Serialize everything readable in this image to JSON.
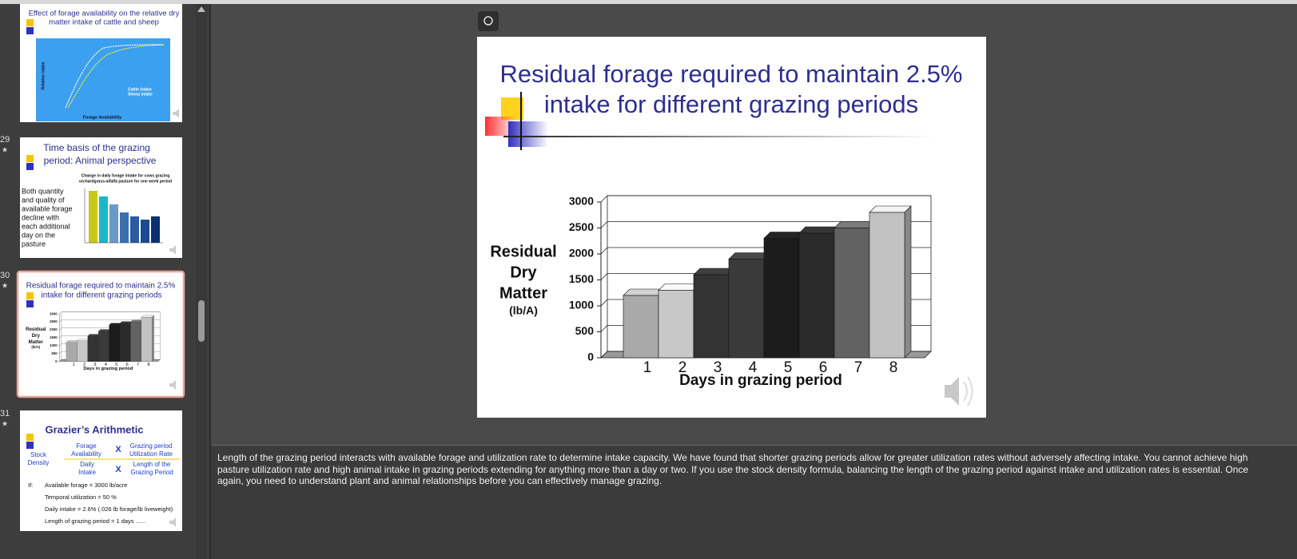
{
  "thumbnails": [
    {
      "title_lines": [
        "Effect of forage availability on the relative dry",
        "matter intake of cattle and sheep"
      ],
      "y_label": "Relative intake",
      "x_label": "Forage Availability",
      "legend": [
        "Cattle intake",
        "Sheep intake"
      ]
    },
    {
      "number": "29",
      "title_lines": [
        "Time basis of the grazing",
        "period: Animal perspective"
      ],
      "chart_title_lines": [
        "Change in daily forage intake for cows grazing",
        "orchardgrass-alfalfa pasture for one week period"
      ],
      "body_lines": [
        "Both quantity",
        "and quality of",
        "available forage",
        "decline with",
        "each additional",
        "day on the",
        "pasture"
      ]
    },
    {
      "number": "30"
    },
    {
      "number": "31",
      "title": "Grazier’s Arithmetic",
      "stock_density_lines": [
        "Stock",
        "Density"
      ],
      "forage_lines": [
        "Forage",
        "Availability"
      ],
      "times": "X",
      "utilization_lines": [
        "Grazing period",
        "Utilization Rate"
      ],
      "intake_lines": [
        "Daily",
        "Intake"
      ],
      "length_lines": [
        "Length of the",
        "Grazing Period"
      ],
      "if": "If:",
      "givens": [
        "Available forage = 3000 lb/acre",
        "Temporal utilization = 50 %",
        "Daily intake = 2.6% (.026 lb forage/lb liveweight)",
        "Length of grazing period = 1 days ......"
      ]
    }
  ],
  "slide": {
    "title_lines": [
      "Residual forage required to maintain 2.5%",
      "intake for different grazing periods"
    ]
  },
  "chart_data": {
    "type": "bar",
    "categories": [
      "1",
      "2",
      "3",
      "4",
      "5",
      "6",
      "7",
      "8"
    ],
    "values": [
      1200,
      1300,
      1600,
      1900,
      2300,
      2400,
      2500,
      2800
    ],
    "colors": [
      "#a9a9a9",
      "#c8c8c8",
      "#333333",
      "#3a3a3a",
      "#1c1c1c",
      "#2b2b2b",
      "#626262",
      "#c2c2c2"
    ],
    "y_label_lines": [
      "Residual",
      "Dry",
      "Matter"
    ],
    "y_unit": "(lb/A)",
    "x_label": "Days in grazing period",
    "ylim": [
      0,
      3000
    ],
    "yticks": [
      0,
      500,
      1000,
      1500,
      2000,
      2500,
      3000
    ],
    "grid": true
  },
  "notes": "Length of the grazing period interacts with available forage and utilization rate to determine intake capacity. We have found that shorter grazing periods allow for greater utilization rates without adversely affecting intake. You cannot achieve high pasture utilization rate and high animal intake in grazing periods extending for anything more than a day or two. If you use the stock density formula, balancing the length of the grazing period against intake and utilization rates is essential. Once again, you need to understand plant and animal relationships before you can effectively manage grazing."
}
